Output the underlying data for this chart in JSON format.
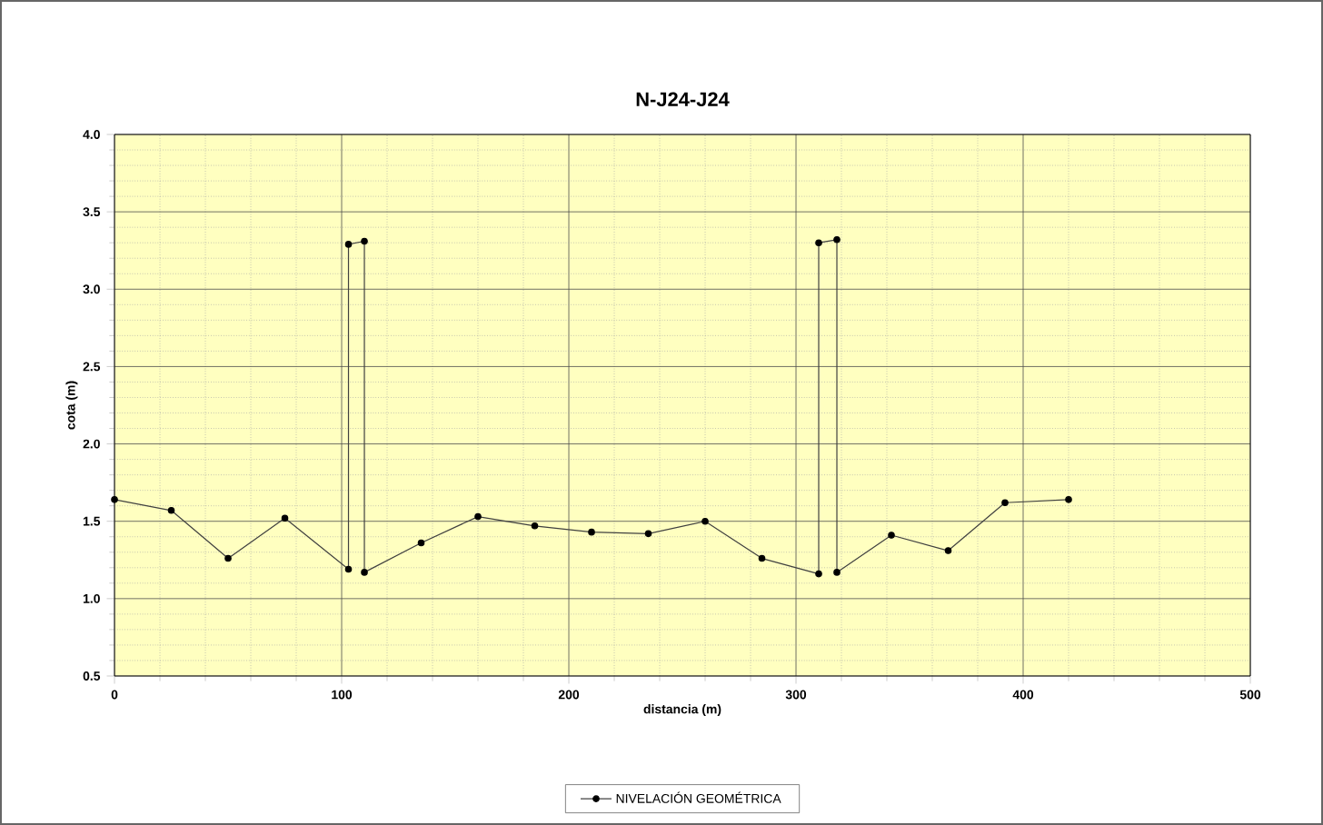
{
  "chart_data": {
    "type": "line",
    "title": "N-J24-J24",
    "xlabel": "distancia (m)",
    "ylabel": "cota (m)",
    "series": [
      {
        "name": "NIVELACIÓN GEOMÉTRICA",
        "color": "#404040",
        "x": [
          0,
          25,
          50,
          75,
          103,
          103,
          110,
          110,
          135,
          160,
          185,
          210,
          235,
          260,
          285,
          310,
          310,
          318,
          318,
          342,
          367,
          392,
          420
        ],
        "values": [
          1.64,
          1.57,
          1.26,
          1.52,
          1.19,
          3.29,
          3.31,
          1.17,
          1.36,
          1.53,
          1.47,
          1.43,
          1.42,
          1.5,
          1.26,
          1.16,
          3.3,
          3.32,
          1.17,
          1.41,
          1.31,
          1.62,
          1.64
        ]
      }
    ],
    "xlim": [
      0,
      500
    ],
    "xticks": [
      0,
      100,
      200,
      300,
      400,
      500
    ],
    "ylim": [
      0.5,
      4.0
    ],
    "yticks": [
      {
        "value": 0.5,
        "label": "0.5"
      },
      {
        "value": 1.0,
        "label": "1.0"
      },
      {
        "value": 1.5,
        "label": "1.5"
      },
      {
        "value": 2.0,
        "label": "2.0"
      },
      {
        "value": 2.5,
        "label": "2.5"
      },
      {
        "value": 3.0,
        "label": "3.0"
      },
      {
        "value": 3.5,
        "label": "3.5"
      },
      {
        "value": 4.0,
        "label": "4.0"
      }
    ],
    "grid": true,
    "legend": "bottom",
    "marker": "circle",
    "line_style": "solid"
  }
}
